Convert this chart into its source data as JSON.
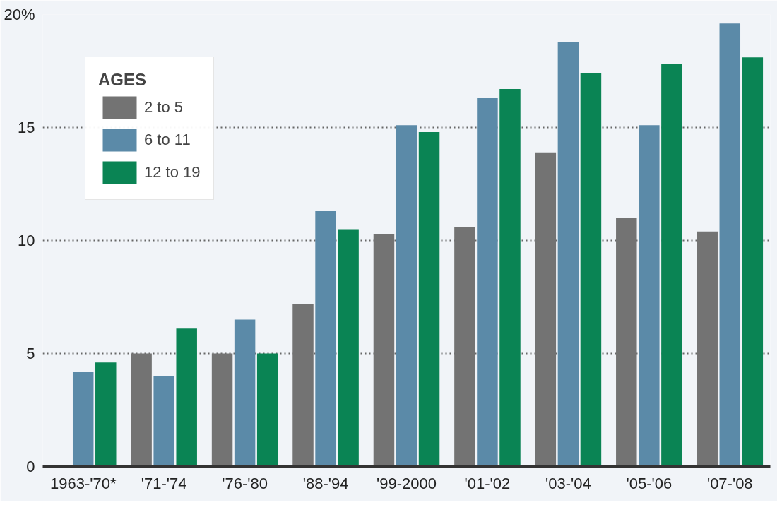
{
  "chart_data": {
    "type": "bar",
    "categories": [
      "1963-'70*",
      "'71-'74",
      "'76-'80",
      "'88-'94",
      "'99-2000",
      "'01-'02",
      "'03-'04",
      "'05-'06",
      "'07-'08"
    ],
    "series": [
      {
        "name": "2 to 5",
        "color": "#737373",
        "values": [
          null,
          5.0,
          5.0,
          7.2,
          10.3,
          10.6,
          13.9,
          11.0,
          10.4
        ]
      },
      {
        "name": "6 to 11",
        "color": "#5b8aa8",
        "values": [
          4.2,
          4.0,
          6.5,
          11.3,
          15.1,
          16.3,
          18.8,
          15.1,
          19.6
        ]
      },
      {
        "name": "12 to 19",
        "color": "#0a8454",
        "values": [
          4.6,
          6.1,
          5.0,
          10.5,
          14.8,
          16.7,
          17.4,
          17.8,
          18.1
        ]
      }
    ],
    "legend_title": "AGES",
    "legend": "top left",
    "ylim": [
      0,
      20
    ],
    "yticks": [
      0,
      5,
      10,
      15,
      {
        "value": 20,
        "label": "20%"
      }
    ],
    "grid": "y"
  }
}
